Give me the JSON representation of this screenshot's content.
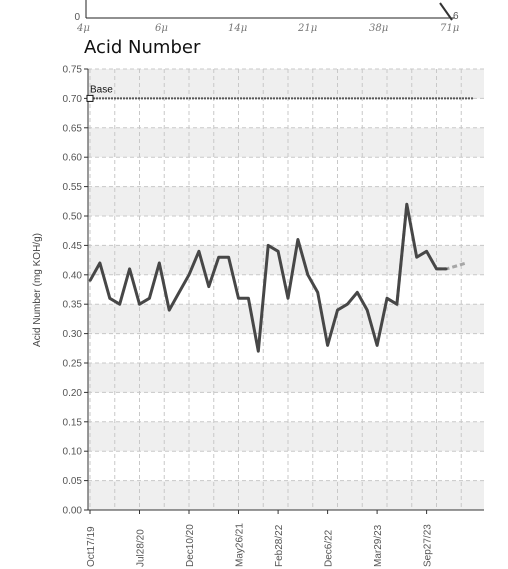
{
  "top_strip": {
    "y_label": "0",
    "right_label": "6",
    "ticks": [
      "4μ",
      "6μ",
      "14μ",
      "21μ",
      "38μ",
      "71μ"
    ]
  },
  "chart_data": {
    "type": "line",
    "title": "Acid Number",
    "ylabel": "Acid Number (mg KOH/g)",
    "xlabel": "",
    "ylim": [
      0,
      0.75
    ],
    "yticks": [
      "0.00",
      "0.05",
      "0.10",
      "0.15",
      "0.20",
      "0.25",
      "0.30",
      "0.35",
      "0.40",
      "0.45",
      "0.50",
      "0.55",
      "0.60",
      "0.65",
      "0.70",
      "0.75"
    ],
    "x_tick_labels": [
      "Oct17/19",
      "Jul28/20",
      "Dec10/20",
      "May26/21",
      "Feb28/22",
      "Dec6/22",
      "Mar29/23",
      "Sep27/23"
    ],
    "grid": true,
    "baseline": {
      "label": "Base",
      "value": 0.7
    },
    "series": [
      {
        "values": [
          0.39,
          0.42,
          0.36,
          0.35,
          0.41,
          0.35,
          0.36,
          0.42,
          0.34,
          0.37,
          0.4,
          0.44,
          0.38,
          0.43,
          0.43,
          0.36,
          0.36,
          0.27,
          0.45,
          0.44,
          0.36,
          0.46,
          0.4,
          0.37,
          0.28,
          0.34,
          0.35,
          0.37,
          0.34,
          0.28,
          0.36,
          0.35,
          0.52,
          0.43,
          0.44,
          0.41,
          0.41
        ]
      }
    ],
    "trend_segments": [
      {
        "x": [
          30,
          31,
          32
        ],
        "values": [
          0.36,
          0.35,
          0.52
        ]
      },
      {
        "x": [
          35,
          36,
          37,
          38
        ],
        "values": [
          0.41,
          0.41,
          0.415,
          0.42
        ]
      }
    ],
    "colors": {
      "line": "#474747",
      "trend": "#a6a6a6",
      "band": "#efefef",
      "grid": "#c8c8c8"
    }
  }
}
